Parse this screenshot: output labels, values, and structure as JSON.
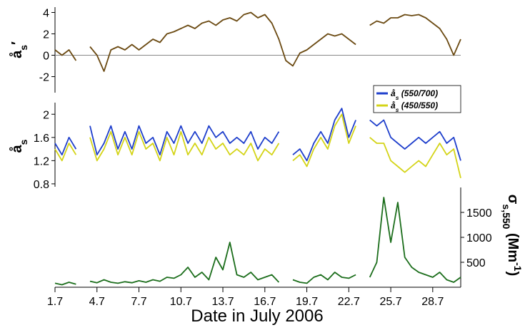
{
  "chart_data": {
    "type": "line",
    "xlabel": "Date in July 2006",
    "xlim": [
      1,
      30
    ],
    "xticks": [
      {
        "value": 1,
        "label": "1.7"
      },
      {
        "value": 4,
        "label": "4.7"
      },
      {
        "value": 7,
        "label": "7.7"
      },
      {
        "value": 10,
        "label": "10.7"
      },
      {
        "value": 13,
        "label": "13.7"
      },
      {
        "value": 16,
        "label": "16.7"
      },
      {
        "value": 19,
        "label": "19.7"
      },
      {
        "value": 22,
        "label": "22.7"
      },
      {
        "value": 25,
        "label": "25.7"
      },
      {
        "value": 28,
        "label": "28.7"
      }
    ],
    "x": [
      1.0,
      1.5,
      2.0,
      2.5,
      3.0,
      3.5,
      4.0,
      4.5,
      5.0,
      5.5,
      6.0,
      6.5,
      7.0,
      7.5,
      8.0,
      8.5,
      9.0,
      9.5,
      10.0,
      10.5,
      11.0,
      11.5,
      12.0,
      12.5,
      13.0,
      13.5,
      14.0,
      14.5,
      15.0,
      15.5,
      16.0,
      16.5,
      17.0,
      17.5,
      18.0,
      18.5,
      19.0,
      19.5,
      20.0,
      20.5,
      21.0,
      21.5,
      22.0,
      22.5,
      23.0,
      23.5,
      24.0,
      24.5,
      25.0,
      25.5,
      26.0,
      26.5,
      27.0,
      27.5,
      28.0,
      28.5,
      29.0,
      29.5,
      30.0
    ],
    "panels": [
      {
        "axis": "left",
        "ylim": [
          -3.5,
          4.5
        ],
        "yticks": [
          -2,
          0,
          2,
          4
        ],
        "zero_line": true,
        "ylabel": [
          {
            "text": "å"
          },
          {
            "text": "s",
            "shift": "sub"
          },
          {
            "text": "′"
          }
        ],
        "series": [
          {
            "color": "#6b4a12",
            "values": [
              0.5,
              0,
              0.5,
              -0.5,
              null,
              0.8,
              0,
              -1.5,
              0.5,
              0.8,
              0.5,
              1.0,
              0.5,
              1.0,
              1.5,
              1.2,
              2.0,
              2.2,
              2.5,
              2.8,
              2.5,
              3.0,
              3.2,
              2.8,
              3.3,
              3.5,
              3.2,
              3.8,
              4.0,
              3.5,
              3.8,
              3.0,
              1.5,
              -0.5,
              -1.0,
              0.2,
              0.5,
              1.0,
              1.5,
              2.0,
              1.8,
              2.0,
              1.5,
              1.0,
              null,
              2.8,
              3.2,
              3.0,
              3.5,
              3.5,
              3.8,
              3.7,
              3.8,
              3.5,
              3.0,
              2.5,
              1.5,
              0.0,
              1.5
            ]
          }
        ]
      },
      {
        "axis": "left",
        "ylim": [
          0.75,
          2.2
        ],
        "yticks": [
          0.8,
          1.2,
          1.6,
          2.0
        ],
        "legend": "upper right",
        "ylabel": [
          {
            "text": "å"
          },
          {
            "text": "s",
            "shift": "sub"
          }
        ],
        "series": [
          {
            "name": [
              {
                "text": "å"
              },
              {
                "text": "s",
                "shift": "sub"
              },
              {
                "text": " (550/700)"
              }
            ],
            "color": "#1f3fcc",
            "values": [
              1.5,
              1.3,
              1.6,
              1.4,
              null,
              1.8,
              1.3,
              1.5,
              1.8,
              1.4,
              1.7,
              1.4,
              1.8,
              1.5,
              1.6,
              1.3,
              1.7,
              1.5,
              1.8,
              1.5,
              1.7,
              1.5,
              1.8,
              1.6,
              1.7,
              1.5,
              1.6,
              1.5,
              1.7,
              1.4,
              1.6,
              1.5,
              1.7,
              null,
              1.3,
              1.4,
              1.2,
              1.5,
              1.7,
              1.5,
              1.9,
              2.1,
              1.6,
              1.9,
              null,
              1.9,
              1.8,
              1.9,
              1.6,
              1.5,
              1.4,
              1.5,
              1.6,
              1.5,
              1.6,
              1.7,
              1.5,
              1.6,
              1.2
            ]
          },
          {
            "name": [
              {
                "text": "å"
              },
              {
                "text": "s",
                "shift": "sub"
              },
              {
                "text": " (450/550)"
              }
            ],
            "color": "#d4d418",
            "values": [
              1.4,
              1.2,
              1.5,
              1.3,
              null,
              1.6,
              1.2,
              1.4,
              1.7,
              1.3,
              1.6,
              1.3,
              1.7,
              1.4,
              1.5,
              1.2,
              1.6,
              1.3,
              1.7,
              1.3,
              1.5,
              1.3,
              1.6,
              1.4,
              1.5,
              1.3,
              1.4,
              1.3,
              1.5,
              1.2,
              1.4,
              1.3,
              1.5,
              null,
              1.2,
              1.3,
              1.1,
              1.4,
              1.6,
              1.4,
              1.8,
              2.0,
              1.5,
              1.8,
              null,
              1.6,
              1.5,
              1.5,
              1.2,
              1.1,
              1.0,
              1.1,
              1.2,
              1.1,
              1.3,
              1.5,
              1.3,
              1.4,
              0.9
            ]
          }
        ]
      },
      {
        "axis": "right",
        "ylim": [
          0,
          2000
        ],
        "yticks": [
          500,
          1000,
          1500
        ],
        "ylabel": [
          {
            "text": "σ"
          },
          {
            "text": "s,550",
            "shift": "sub"
          },
          {
            "text": " (Mm"
          },
          {
            "text": "-1",
            "shift": "super"
          },
          {
            "text": ")"
          }
        ],
        "series": [
          {
            "color": "#1c6e1c",
            "values": [
              80,
              50,
              100,
              60,
              null,
              120,
              90,
              150,
              100,
              80,
              110,
              90,
              130,
              100,
              150,
              120,
              200,
              180,
              250,
              400,
              200,
              300,
              150,
              600,
              350,
              900,
              250,
              200,
              300,
              150,
              200,
              250,
              100,
              null,
              150,
              100,
              80,
              200,
              250,
              150,
              300,
              200,
              180,
              250,
              null,
              200,
              500,
              1800,
              900,
              1700,
              600,
              400,
              300,
              250,
              200,
              300,
              150,
              100,
              200
            ]
          }
        ]
      }
    ]
  }
}
